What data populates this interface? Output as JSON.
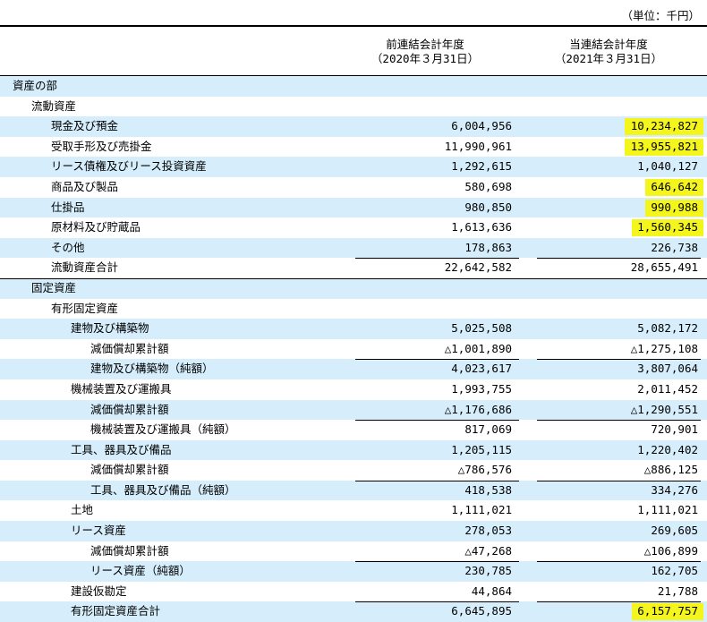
{
  "unit_label": "（単位：千円）",
  "header": {
    "prev_line1": "前連結会計年度",
    "prev_line2": "（2020年３月31日）",
    "curr_line1": "当連結会計年度",
    "curr_line2": "（2021年３月31日）"
  },
  "rows": [
    {
      "label": "資産の部",
      "indent": 14,
      "prev": "",
      "curr": "",
      "shade": true
    },
    {
      "label": "流動資産",
      "indent": 35,
      "prev": "",
      "curr": "",
      "shade": false
    },
    {
      "label": "現金及び預金",
      "indent": 57,
      "prev": "6,004,956",
      "curr": "10,234,827",
      "shade": true,
      "hl": true
    },
    {
      "label": "受取手形及び売掛金",
      "indent": 57,
      "prev": "11,990,961",
      "curr": "13,955,821",
      "shade": false,
      "hl": true
    },
    {
      "label": "リース債権及びリース投資資産",
      "indent": 57,
      "prev": "1,292,615",
      "curr": "1,040,127",
      "shade": true
    },
    {
      "label": "商品及び製品",
      "indent": 57,
      "prev": "580,698",
      "curr": "646,642",
      "shade": false,
      "hl": true
    },
    {
      "label": "仕掛品",
      "indent": 57,
      "prev": "980,850",
      "curr": "990,988",
      "shade": true,
      "hl": true
    },
    {
      "label": "原材料及び貯蔵品",
      "indent": 57,
      "prev": "1,613,636",
      "curr": "1,560,345",
      "shade": false,
      "hl": true
    },
    {
      "label": "その他",
      "indent": 57,
      "prev": "178,863",
      "curr": "226,738",
      "shade": true
    },
    {
      "label": "流動資産合計",
      "indent": 57,
      "prev": "22,642,582",
      "curr": "28,655,491",
      "shade": false,
      "topline": true,
      "fullrule_after": true
    },
    {
      "label": "固定資産",
      "indent": 35,
      "prev": "",
      "curr": "",
      "shade": true
    },
    {
      "label": "有形固定資産",
      "indent": 57,
      "prev": "",
      "curr": "",
      "shade": false
    },
    {
      "label": "建物及び構築物",
      "indent": 79,
      "prev": "5,025,508",
      "curr": "5,082,172",
      "shade": true
    },
    {
      "label": "減価償却累計額",
      "indent": 101,
      "prev": "△1,001,890",
      "curr": "△1,275,108",
      "shade": false
    },
    {
      "label": "建物及び構築物（純額）",
      "indent": 101,
      "prev": "4,023,617",
      "curr": "3,807,064",
      "shade": true,
      "topline": true
    },
    {
      "label": "機械装置及び運搬具",
      "indent": 79,
      "prev": "1,993,755",
      "curr": "2,011,452",
      "shade": false
    },
    {
      "label": "減価償却累計額",
      "indent": 101,
      "prev": "△1,176,686",
      "curr": "△1,290,551",
      "shade": true
    },
    {
      "label": "機械装置及び運搬具（純額）",
      "indent": 101,
      "prev": "817,069",
      "curr": "720,901",
      "shade": false,
      "topline": true
    },
    {
      "label": "工具、器具及び備品",
      "indent": 79,
      "prev": "1,205,115",
      "curr": "1,220,402",
      "shade": true
    },
    {
      "label": "減価償却累計額",
      "indent": 101,
      "prev": "△786,576",
      "curr": "△886,125",
      "shade": false
    },
    {
      "label": "工具、器具及び備品（純額）",
      "indent": 101,
      "prev": "418,538",
      "curr": "334,276",
      "shade": true,
      "topline": true
    },
    {
      "label": "土地",
      "indent": 79,
      "prev": "1,111,021",
      "curr": "1,111,021",
      "shade": false
    },
    {
      "label": "リース資産",
      "indent": 79,
      "prev": "278,053",
      "curr": "269,605",
      "shade": true
    },
    {
      "label": "減価償却累計額",
      "indent": 101,
      "prev": "△47,268",
      "curr": "△106,899",
      "shade": false
    },
    {
      "label": "リース資産（純額）",
      "indent": 101,
      "prev": "230,785",
      "curr": "162,705",
      "shade": true,
      "topline": true
    },
    {
      "label": "建設仮勘定",
      "indent": 79,
      "prev": "44,864",
      "curr": "21,788",
      "shade": false
    },
    {
      "label": "有形固定資産合計",
      "indent": 79,
      "prev": "6,645,895",
      "curr": "6,157,757",
      "shade": true,
      "topline": true,
      "hl": true
    }
  ],
  "colors": {
    "shade": "#d6eefc",
    "highlight": "#f4f51c"
  }
}
